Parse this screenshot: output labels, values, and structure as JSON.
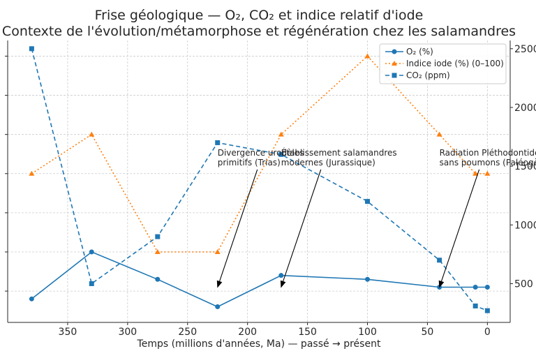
{
  "chart_data": {
    "type": "line",
    "title_line1": "Frise géologique — O₂, CO₂ et indice relatif d'iode",
    "title_line2": "Contexte de l'évolution/métamorphose et régénération chez les salamandres",
    "xlabel": "Temps (millions d'années, Ma) — passé → présent",
    "x_inverted": true,
    "xlim": [
      400,
      -19
    ],
    "x_ticks": [
      350,
      300,
      250,
      200,
      150,
      100,
      50,
      0
    ],
    "x": [
      380,
      330,
      275,
      225,
      172,
      100,
      40,
      10,
      0
    ],
    "left_axis": {
      "ylim": [
        11,
        47
      ],
      "ticks": [
        15,
        20,
        25,
        30,
        35,
        40,
        45
      ],
      "tick_labels": [
        "",
        "",
        "",
        "",
        "",
        "",
        ""
      ]
    },
    "right_axis": {
      "ylim": [
        170,
        2570
      ],
      "ticks": [
        500,
        1000,
        1500,
        2000,
        2500
      ],
      "tick_labels": [
        "500",
        "1000",
        "1500",
        "2000",
        "2500"
      ]
    },
    "series": [
      {
        "name": "O₂ (%)",
        "axis": "left",
        "color": "#1f77b4",
        "style": "solid",
        "marker": "circle",
        "values": [
          14,
          20,
          16.5,
          13,
          17,
          16.5,
          15.5,
          15.5,
          15.5
        ]
      },
      {
        "name": "Indice iode (%) (0–100)",
        "axis": "left",
        "color": "#ff7f0e",
        "style": "dotted",
        "marker": "triangle",
        "values": [
          30,
          35,
          20,
          20,
          35,
          45,
          35,
          30,
          30
        ]
      },
      {
        "name": "CO₂ (ppm)",
        "axis": "right",
        "color": "#1f77b4",
        "style": "dashed",
        "marker": "square",
        "values": [
          2500,
          500,
          900,
          1700,
          1600,
          1200,
          700,
          310,
          270
        ]
      }
    ],
    "annotations": [
      {
        "text_lines": [
          "Divergence urodèles",
          "primitifs (Trias)"
        ],
        "x": 225,
        "y_left": 15.5,
        "text_at_x": 225,
        "text_at_y_left": 32.3
      },
      {
        "text_lines": [
          "Établissement salamandres",
          "modernes (Jurassique)"
        ],
        "x": 172,
        "y_left": 15.5,
        "text_at_x": 172,
        "text_at_y_left": 32.3
      },
      {
        "text_lines": [
          "Radiation Pléthodontidés",
          "sans poumons (Paléogène)"
        ],
        "x": 40,
        "y_left": 15.5,
        "text_at_x": 40,
        "text_at_y_left": 32.3
      }
    ],
    "grid": true,
    "legend_position": "top-right"
  }
}
